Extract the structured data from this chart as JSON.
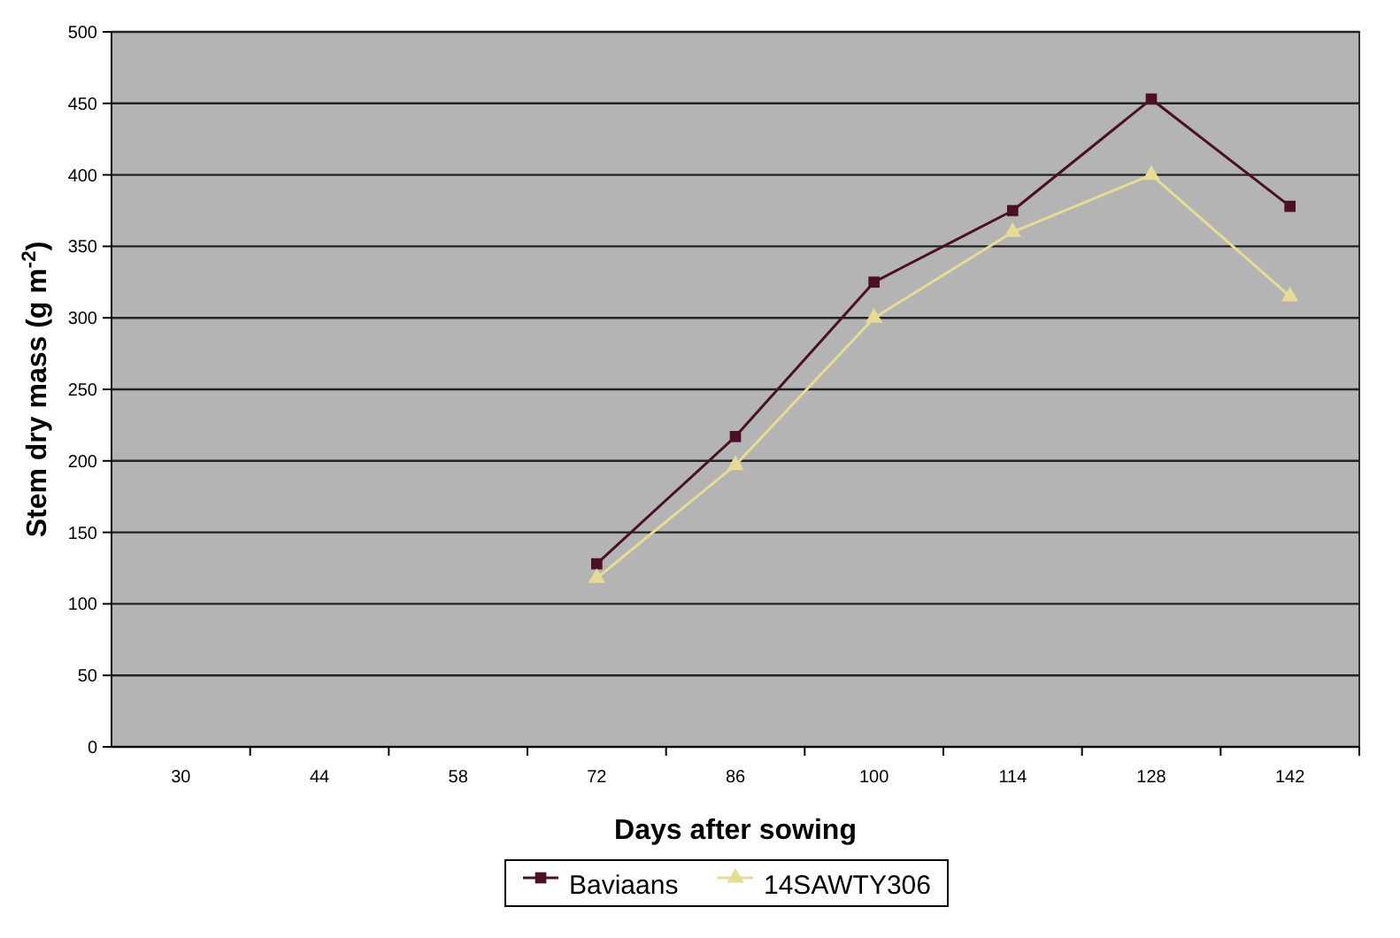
{
  "chart_data": {
    "type": "line",
    "xlabel": "Days after sowing",
    "ylabel": "Stem dry mass (g m$^{-2}$)",
    "categories": [
      "30",
      "44",
      "58",
      "72",
      "86",
      "100",
      "114",
      "128",
      "142"
    ],
    "ylim": [
      0,
      500
    ],
    "yticks": [
      0,
      50,
      100,
      150,
      200,
      250,
      300,
      350,
      400,
      450,
      500
    ],
    "grid": "y",
    "legend": "bottom",
    "series": [
      {
        "name": "Baviaans",
        "color": "#4a1028",
        "marker": "square",
        "values": [
          null,
          null,
          null,
          128,
          217,
          325,
          375,
          453,
          378
        ]
      },
      {
        "name": "14SAWTY306",
        "color": "#e6dc96",
        "marker": "triangle",
        "values": [
          null,
          null,
          null,
          118,
          197,
          300,
          360,
          400,
          315
        ]
      }
    ]
  }
}
